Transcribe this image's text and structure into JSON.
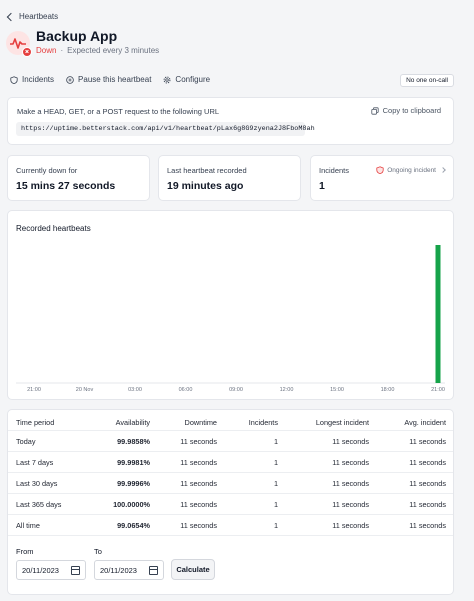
{
  "breadcrumb": {
    "label": "Heartbeats"
  },
  "header": {
    "title": "Backup App",
    "status": "Down",
    "separator": "·",
    "frequency": "Expected every 3 minutes"
  },
  "actions": {
    "incidents": "Incidents",
    "pause": "Pause this heartbeat",
    "configure": "Configure",
    "oncall": "No one on-call"
  },
  "url_card": {
    "instruction": "Make a HEAD, GET, or a POST request to the following URL",
    "copy": "Copy to clipboard",
    "url": "https://uptime.betterstack.com/api/v1/heartbeat/pLax6g8G9zyena2J8FboM8ah"
  },
  "stats": {
    "down_label": "Currently down for",
    "down_value": "15 mins 27 seconds",
    "last_label": "Last heartbeat recorded",
    "last_value": "19 minutes ago",
    "incidents_label": "Incidents",
    "incidents_value": "1",
    "ongoing": "Ongoing incident"
  },
  "chart_data": {
    "type": "bar",
    "title": "Recorded heartbeats",
    "categories": [
      "21:00",
      "20 Nov",
      "03:00",
      "06:00",
      "09:00",
      "12:00",
      "15:00",
      "18:00",
      "21:00"
    ],
    "values": [
      0,
      0,
      0,
      0,
      0,
      0,
      0,
      0,
      1
    ],
    "ylim": [
      0,
      1
    ],
    "grid": false,
    "color": "#16a34a"
  },
  "table": {
    "headers": [
      "Time period",
      "Availability",
      "Downtime",
      "Incidents",
      "Longest incident",
      "Avg. incident"
    ],
    "rows": [
      [
        "Today",
        "99.9858%",
        "11 seconds",
        "1",
        "11 seconds",
        "11 seconds"
      ],
      [
        "Last 7 days",
        "99.9981%",
        "11 seconds",
        "1",
        "11 seconds",
        "11 seconds"
      ],
      [
        "Last 30 days",
        "99.9996%",
        "11 seconds",
        "1",
        "11 seconds",
        "11 seconds"
      ],
      [
        "Last 365 days",
        "100.0000%",
        "11 seconds",
        "1",
        "11 seconds",
        "11 seconds"
      ],
      [
        "All time",
        "99.0654%",
        "11 seconds",
        "1",
        "11 seconds",
        "11 seconds"
      ]
    ]
  },
  "date_range": {
    "from_label": "From",
    "from_value": "20/11/2023",
    "to_label": "To",
    "to_value": "20/11/2023",
    "calculate": "Calculate"
  },
  "colors": {
    "down": "#e53e3e",
    "bar": "#16a34a"
  }
}
